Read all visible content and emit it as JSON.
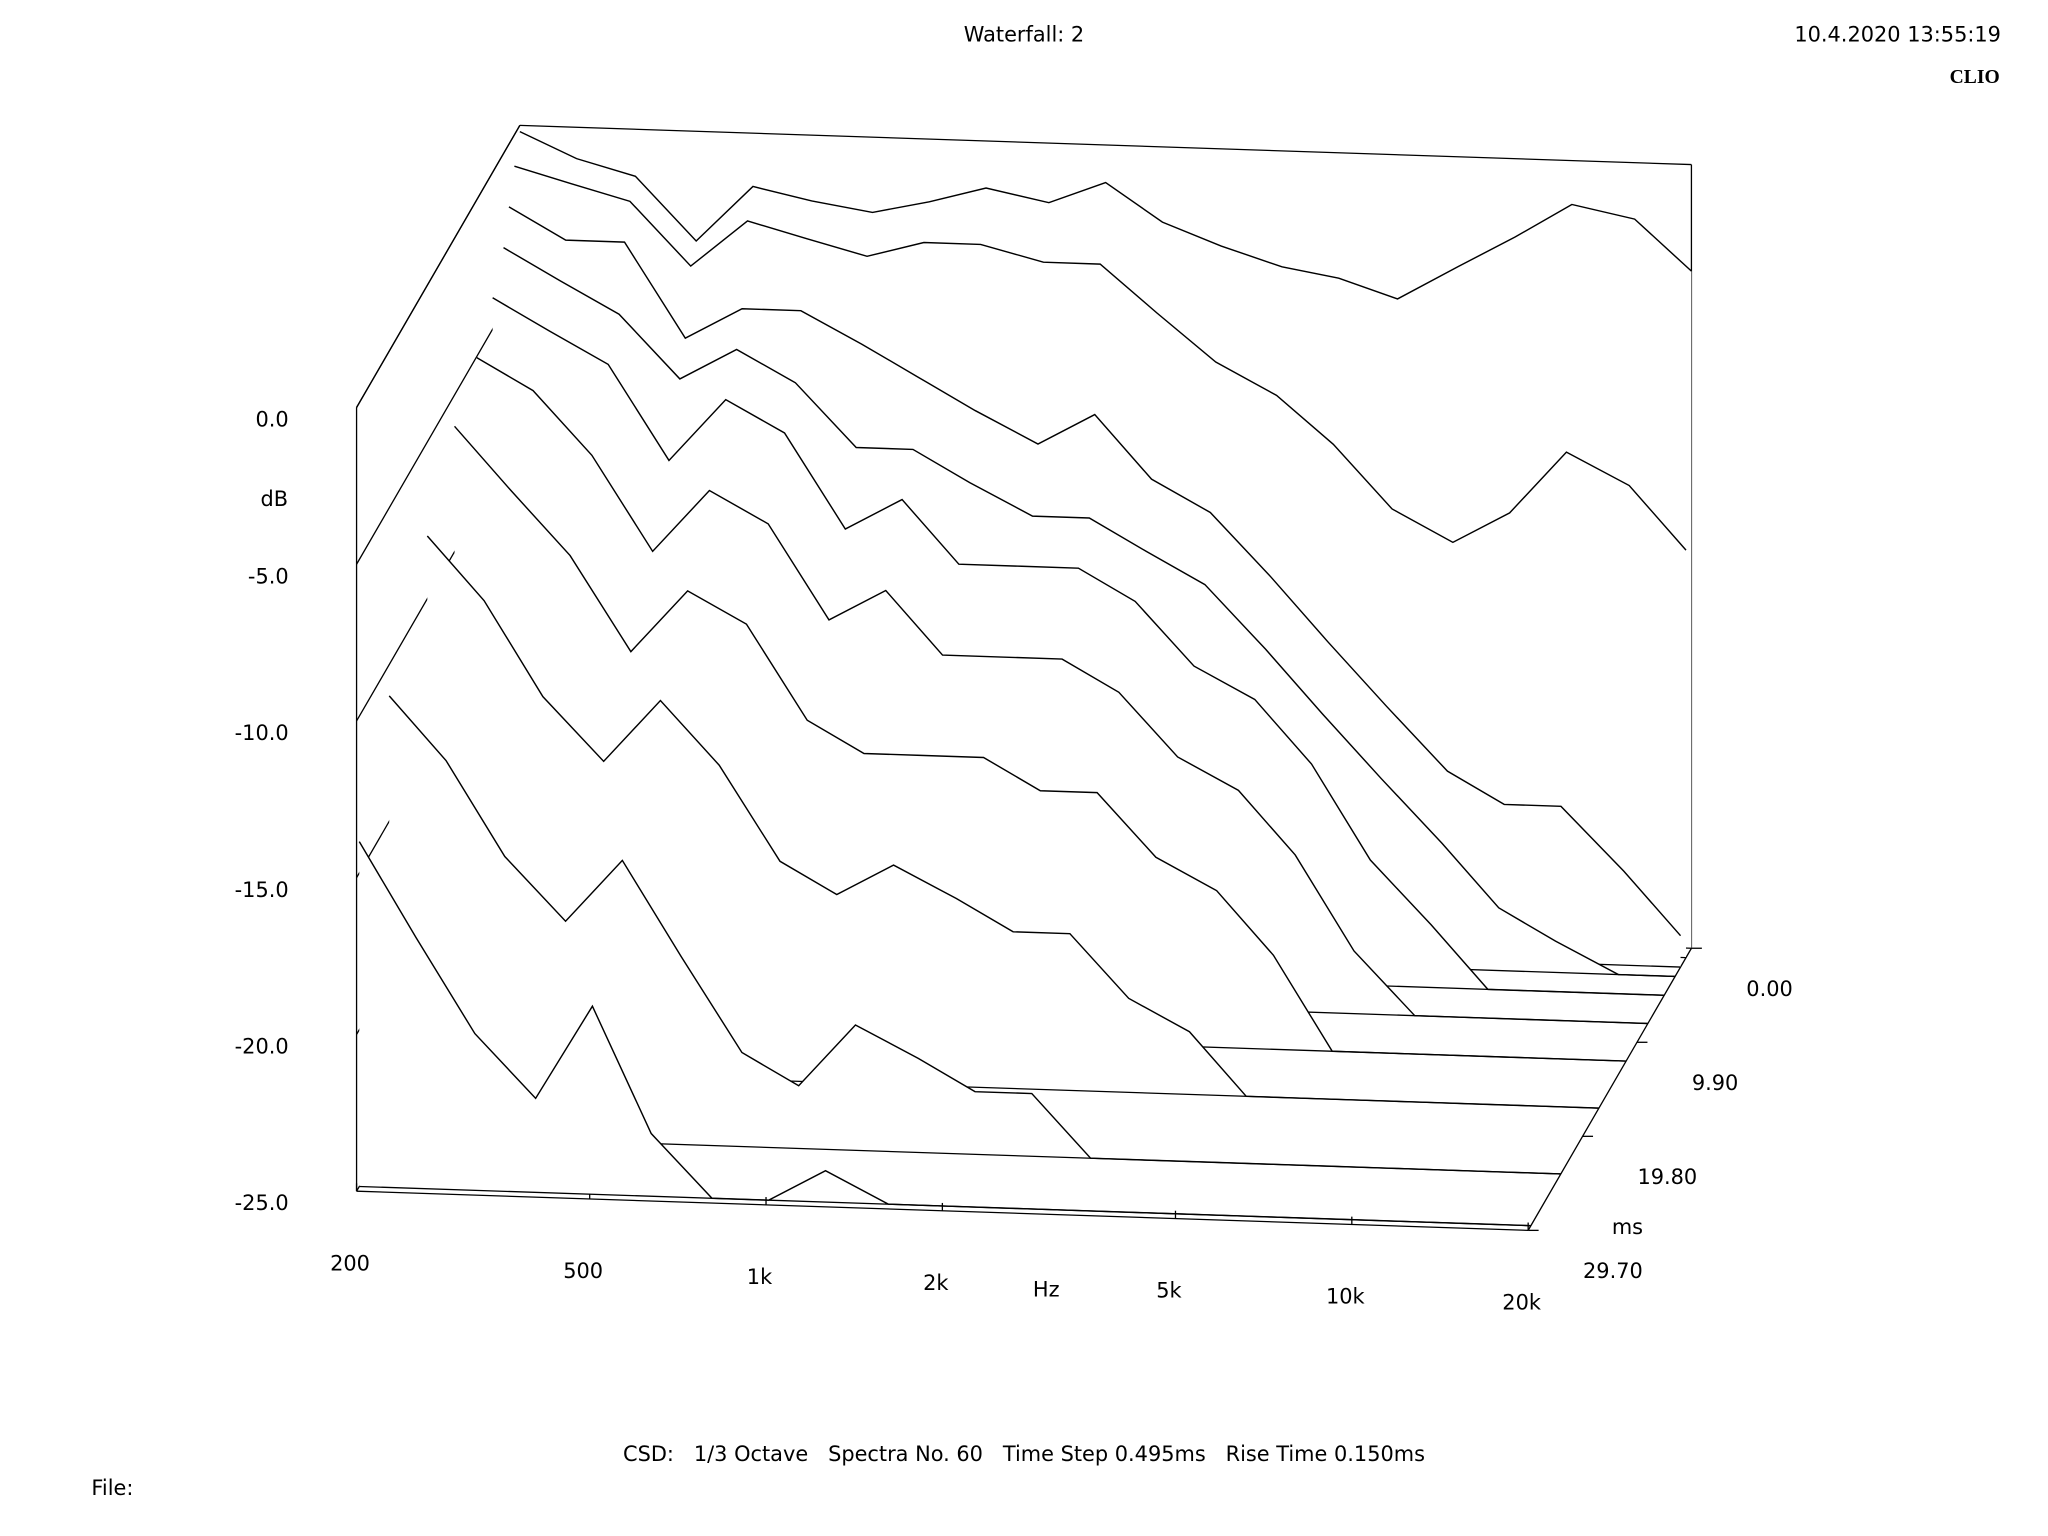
{
  "chart_data": {
    "type": "waterfall",
    "title": "Waterfall: 2",
    "timestamp": "10.4.2020 13:55:19",
    "brand": "CLIO",
    "ylabel": "dB",
    "xlabel": "Hz",
    "tlabel": "ms",
    "caption": "CSD:   1/3 Octave   Spectra No. 60   Time Step 0.495ms   Rise Time 0.150ms",
    "file_label": "File:",
    "xscale": "log",
    "xlim": [
      200,
      20000
    ],
    "ylim": [
      -25,
      0
    ],
    "tlim": [
      0,
      29.7
    ],
    "xticks": [
      200,
      500,
      {
        "value": 1000,
        "label": "1k"
      },
      {
        "value": 2000,
        "label": "2k"
      },
      {
        "value": 5000,
        "label": "5k"
      },
      {
        "value": 10000,
        "label": "10k"
      },
      {
        "value": 20000,
        "label": "20k"
      }
    ],
    "yticks": [
      {
        "value": 0,
        "label": "0.0"
      },
      {
        "value": -5,
        "label": "-5.0"
      },
      {
        "value": -10,
        "label": "-10.0"
      },
      {
        "value": -15,
        "label": "-15.0"
      },
      {
        "value": -20,
        "label": "-20.0"
      },
      {
        "value": -25,
        "label": "-25.0"
      }
    ],
    "tticks": [
      {
        "value": 0,
        "label": "0.00"
      },
      {
        "value": 9.9,
        "label": "9.90"
      },
      {
        "value": 19.8,
        "label": "19.80"
      },
      {
        "value": 29.7,
        "label": "29.70"
      }
    ],
    "color": "#000000",
    "x": [
      200,
      250,
      315,
      400,
      500,
      630,
      800,
      1000,
      1250,
      1600,
      2000,
      2500,
      3150,
      4000,
      5000,
      6300,
      8000,
      10000,
      12500,
      16000,
      20000
    ],
    "times": [
      0,
      0.99,
      1.98,
      2.97,
      4.95,
      7.92,
      11.88,
      16.83,
      23.76,
      29.205
    ],
    "series": [
      {
        "values": [
          -0.2,
          -1,
          -1.5,
          -3.5,
          -1.7,
          -2.1,
          -2.4,
          -2,
          -1.5,
          -1.9,
          -1.2,
          -2.4,
          -3.1,
          -3.7,
          -4,
          -4.6,
          -3.5,
          -2.5,
          -1.4,
          -1.8,
          -3.4
        ]
      },
      {
        "values": [
          -1,
          -1.5,
          -2,
          -4,
          -2.5,
          -3,
          -3.5,
          -3,
          -3,
          -3.5,
          -3.5,
          -5,
          -6.5,
          -7.5,
          -9,
          -11,
          -12,
          -11,
          -9,
          -10,
          -12
        ]
      },
      {
        "values": [
          -2,
          -3,
          -3,
          -6,
          -5,
          -5,
          -6,
          -7,
          -8,
          -9,
          -8,
          -10,
          -11,
          -13,
          -15,
          -17,
          -19,
          -20,
          -20,
          -22,
          -24
        ]
      },
      {
        "values": [
          -3,
          -4,
          -5,
          -7,
          -6,
          -7,
          -9,
          -9,
          -10,
          -11,
          -11,
          -12,
          -13,
          -15,
          -17,
          -19,
          -21,
          -23,
          -24,
          -25,
          -25
        ]
      },
      {
        "values": [
          -4,
          -5,
          -6,
          -9,
          -7,
          -8,
          -11,
          -10,
          -12,
          -12,
          -12,
          -13,
          -15,
          -16,
          -18,
          -21,
          -23,
          -25,
          -25,
          -25,
          -25
        ]
      },
      {
        "values": [
          -5,
          -6,
          -8,
          -11,
          -9,
          -10,
          -13,
          -12,
          -14,
          -14,
          -14,
          -15,
          -17,
          -18,
          -20,
          -23,
          -25,
          -25,
          -25,
          -25,
          -25
        ]
      },
      {
        "values": [
          -6,
          -8,
          -10,
          -13,
          -11,
          -12,
          -15,
          -16,
          -16,
          -16,
          -17,
          -17,
          -19,
          -20,
          -22,
          -25,
          -25,
          -25,
          -25,
          -25,
          -25
        ]
      },
      {
        "values": [
          -8,
          -10,
          -13,
          -15,
          -13,
          -15,
          -18,
          -19,
          -18,
          -19,
          -20,
          -20,
          -22,
          -23,
          -25,
          -25,
          -25,
          -25,
          -25,
          -25,
          -25
        ]
      },
      {
        "values": [
          -11,
          -13,
          -16,
          -18,
          -16,
          -19,
          -22,
          -23,
          -21,
          -22,
          -23,
          -23,
          -25,
          -25,
          -25,
          -25,
          -25,
          -25,
          -25,
          -25,
          -25
        ]
      },
      {
        "values": [
          -14,
          -17,
          -20,
          -22,
          -19,
          -23,
          -25,
          -25,
          -24,
          -25,
          -25,
          -25,
          -25,
          -25,
          -25,
          -25,
          -25,
          -25,
          -25,
          -25,
          -25
        ]
      }
    ]
  }
}
